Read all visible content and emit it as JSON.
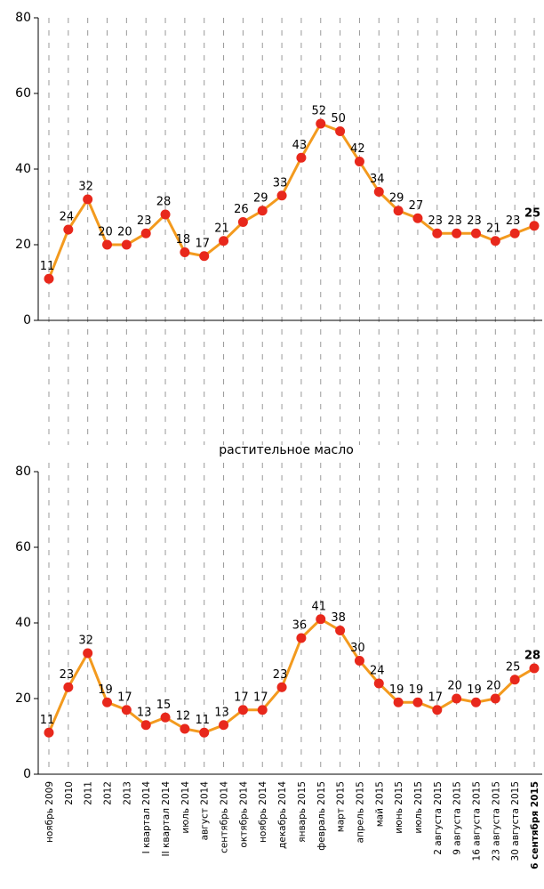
{
  "chart_data": [
    {
      "type": "line",
      "ylim": [
        0,
        80
      ],
      "yticks": [
        0,
        20,
        40,
        60,
        80
      ],
      "highlight_last": true,
      "series": [
        {
          "color": "#f39a1e",
          "marker_color": "#e8281c",
          "values": [
            11,
            24,
            32,
            20,
            20,
            23,
            28,
            18,
            17,
            21,
            26,
            29,
            33,
            43,
            52,
            50,
            42,
            34,
            29,
            27,
            23,
            23,
            23,
            21,
            23,
            25
          ]
        }
      ]
    },
    {
      "type": "line",
      "title": "растительное масло",
      "ylim": [
        0,
        80
      ],
      "yticks": [
        0,
        20,
        40,
        60,
        80
      ],
      "highlight_last": true,
      "categories": [
        "ноябрь 2009",
        "2010",
        "2011",
        "2012",
        "2013",
        "I квартал 2014",
        "II квартал 2014",
        "июль 2014",
        "август 2014",
        "сентябрь 2014",
        "октябрь 2014",
        "ноябрь 2014",
        "декабрь 2014",
        "январь 2015",
        "февраль 2015",
        "март 2015",
        "апрель 2015",
        "май 2015",
        "июнь 2015",
        "июль 2015",
        "2 августа 2015",
        "9 августа 2015",
        "16 августа 2015",
        "23 августа 2015",
        "30 августа 2015",
        "6 сентября 2015"
      ],
      "series": [
        {
          "color": "#f39a1e",
          "marker_color": "#e8281c",
          "values": [
            11,
            23,
            32,
            19,
            17,
            13,
            15,
            12,
            11,
            13,
            17,
            17,
            23,
            36,
            41,
            38,
            30,
            24,
            19,
            19,
            17,
            20,
            19,
            20,
            25,
            28
          ]
        }
      ]
    }
  ]
}
